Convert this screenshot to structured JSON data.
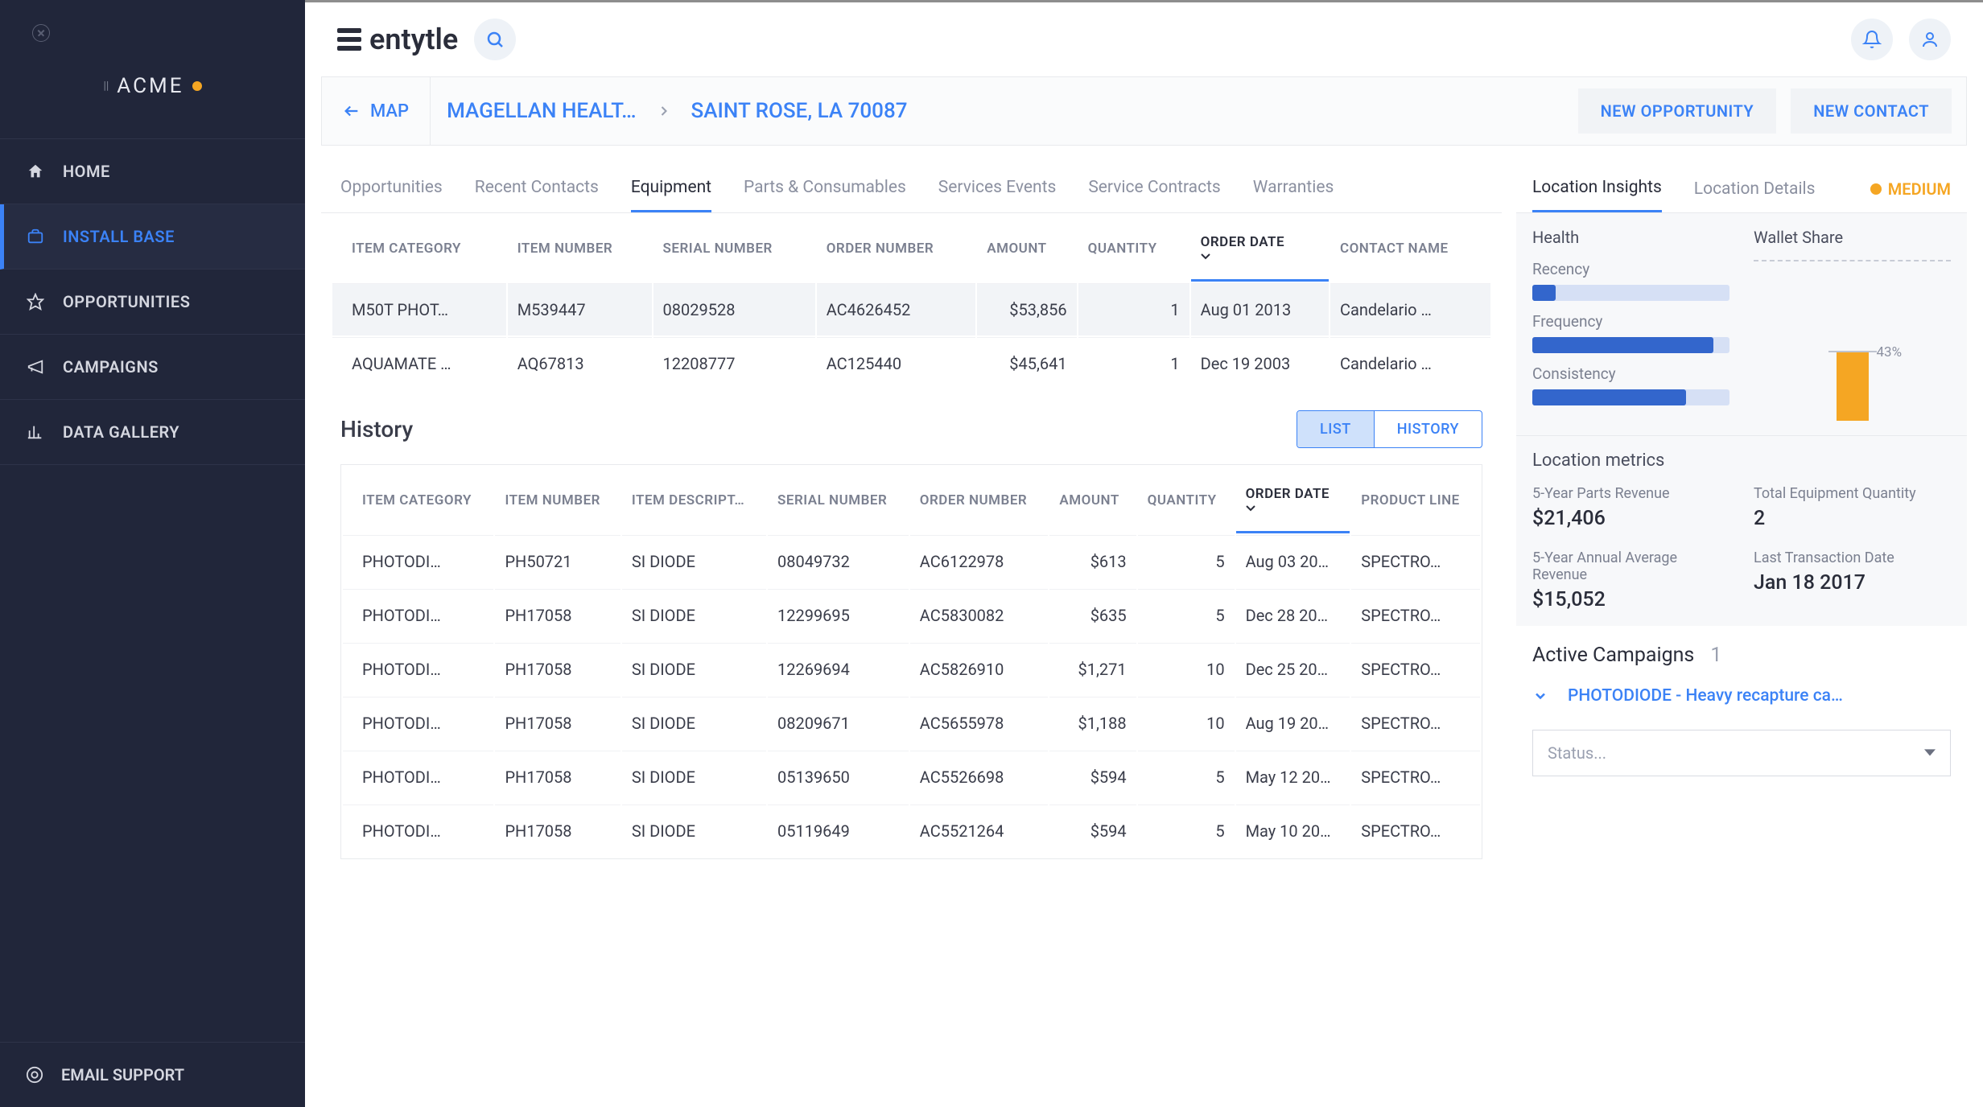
{
  "brand": {
    "sidebar_name": "ACME",
    "logo_text": "entytle"
  },
  "sidebar": {
    "items": [
      {
        "label": "HOME",
        "icon": "home"
      },
      {
        "label": "INSTALL BASE",
        "icon": "briefcase",
        "active": true
      },
      {
        "label": "OPPORTUNITIES",
        "icon": "star"
      },
      {
        "label": "CAMPAIGNS",
        "icon": "megaphone"
      },
      {
        "label": "DATA GALLERY",
        "icon": "chart"
      }
    ],
    "footer": {
      "label": "EMAIL SUPPORT",
      "icon": "support"
    }
  },
  "breadcrumb": {
    "back_label": "MAP",
    "item1": "MAGELLAN HEALT…",
    "item2": "SAINT ROSE, LA 70087",
    "actions": {
      "new_opportunity": "NEW OPPORTUNITY",
      "new_contact": "NEW CONTACT"
    }
  },
  "tabs": [
    {
      "label": "Opportunities"
    },
    {
      "label": "Recent Contacts"
    },
    {
      "label": "Equipment",
      "active": true
    },
    {
      "label": "Parts & Consumables"
    },
    {
      "label": "Services Events"
    },
    {
      "label": "Service Contracts"
    },
    {
      "label": "Warranties"
    }
  ],
  "equipment": {
    "headers": {
      "item_category": "ITEM CATEGORY",
      "item_number": "ITEM NUMBER",
      "serial_number": "SERIAL NUMBER",
      "order_number": "ORDER NUMBER",
      "amount": "AMOUNT",
      "quantity": "QUANTITY",
      "order_date": "ORDER DATE",
      "contact_name": "CONTACT NAME"
    },
    "sorted_column": "order_date",
    "rows": [
      {
        "item_category": "M50T PHOT…",
        "item_number": "M539447",
        "serial_number": "08029528",
        "order_number": "AC4626452",
        "amount": "$53,856",
        "quantity": "1",
        "order_date": "Aug 01 2013",
        "contact_name": "Candelario …",
        "hl": true
      },
      {
        "item_category": "AQUAMATE …",
        "item_number": "AQ67813",
        "serial_number": "12208777",
        "order_number": "AC125440",
        "amount": "$45,641",
        "quantity": "1",
        "order_date": "Dec 19 2003",
        "contact_name": "Candelario …"
      }
    ]
  },
  "history": {
    "title": "History",
    "toggle": {
      "list": "LIST",
      "history": "HISTORY",
      "active": "list"
    },
    "headers": {
      "item_category": "ITEM CATEGORY",
      "item_number": "ITEM NUMBER",
      "item_description": "ITEM DESCRIPT…",
      "serial_number": "SERIAL NUMBER",
      "order_number": "ORDER NUMBER",
      "amount": "AMOUNT",
      "quantity": "QUANTITY",
      "order_date": "ORDER DATE",
      "product_line": "PRODUCT LINE"
    },
    "sorted_column": "order_date",
    "rows": [
      {
        "item_category": "PHOTODI…",
        "item_number": "PH50721",
        "item_description": "SI DIODE",
        "serial_number": "08049732",
        "order_number": "AC6122978",
        "amount": "$613",
        "quantity": "5",
        "order_date": "Aug 03 20…",
        "product_line": "SPECTRO…"
      },
      {
        "item_category": "PHOTODI…",
        "item_number": "PH17058",
        "item_description": "SI DIODE",
        "serial_number": "12299695",
        "order_number": "AC5830082",
        "amount": "$635",
        "quantity": "5",
        "order_date": "Dec 28 20…",
        "product_line": "SPECTRO…"
      },
      {
        "item_category": "PHOTODI…",
        "item_number": "PH17058",
        "item_description": "SI DIODE",
        "serial_number": "12269694",
        "order_number": "AC5826910",
        "amount": "$1,271",
        "quantity": "10",
        "order_date": "Dec 25 20…",
        "product_line": "SPECTRO…"
      },
      {
        "item_category": "PHOTODI…",
        "item_number": "PH17058",
        "item_description": "SI DIODE",
        "serial_number": "08209671",
        "order_number": "AC5655978",
        "amount": "$1,188",
        "quantity": "10",
        "order_date": "Aug 19 20…",
        "product_line": "SPECTRO…"
      },
      {
        "item_category": "PHOTODI…",
        "item_number": "PH17058",
        "item_description": "SI DIODE",
        "serial_number": "05139650",
        "order_number": "AC5526698",
        "amount": "$594",
        "quantity": "5",
        "order_date": "May 12 20…",
        "product_line": "SPECTRO…"
      },
      {
        "item_category": "PHOTODI…",
        "item_number": "PH17058",
        "item_description": "SI DIODE",
        "serial_number": "05119649",
        "order_number": "AC5521264",
        "amount": "$594",
        "quantity": "5",
        "order_date": "May 10 20…",
        "product_line": "SPECTRO…"
      }
    ]
  },
  "right": {
    "tabs": {
      "insights": "Location Insights",
      "details": "Location Details"
    },
    "active_tab": "insights",
    "badge": {
      "label": "MEDIUM",
      "color": "#f5a623"
    },
    "health": {
      "title": "Health",
      "bars": [
        {
          "label": "Recency",
          "value": 12,
          "color": "#3366cc",
          "bg": "#d6e0f5"
        },
        {
          "label": "Frequency",
          "value": 92,
          "color": "#3366cc",
          "bg": "#d6e0f5"
        },
        {
          "label": "Consistency",
          "value": 78,
          "color": "#3366cc",
          "bg": "#d6e0f5"
        }
      ]
    },
    "wallet": {
      "title": "Wallet Share",
      "percent_label": "43%",
      "bar_height_pct": 43,
      "bar_color": "#f5a623"
    },
    "metrics": {
      "title": "Location metrics",
      "items": [
        {
          "label": "5-Year Parts Revenue",
          "value": "$21,406"
        },
        {
          "label": "Total Equipment Quantity",
          "value": "2"
        },
        {
          "label": "5-Year Annual Average Revenue",
          "value": "$15,052"
        },
        {
          "label": "Last Transaction Date",
          "value": "Jan 18 2017"
        }
      ]
    },
    "campaigns": {
      "title": "Active Campaigns",
      "count": "1",
      "item": "PHOTODIODE - Heavy recapture ca…",
      "status_placeholder": "Status..."
    }
  },
  "colors": {
    "accent": "#3b82f6",
    "warning": "#f5a623",
    "sidebar_bg": "#21263a",
    "text": "#3a3d4a",
    "muted": "#8b90a0"
  }
}
